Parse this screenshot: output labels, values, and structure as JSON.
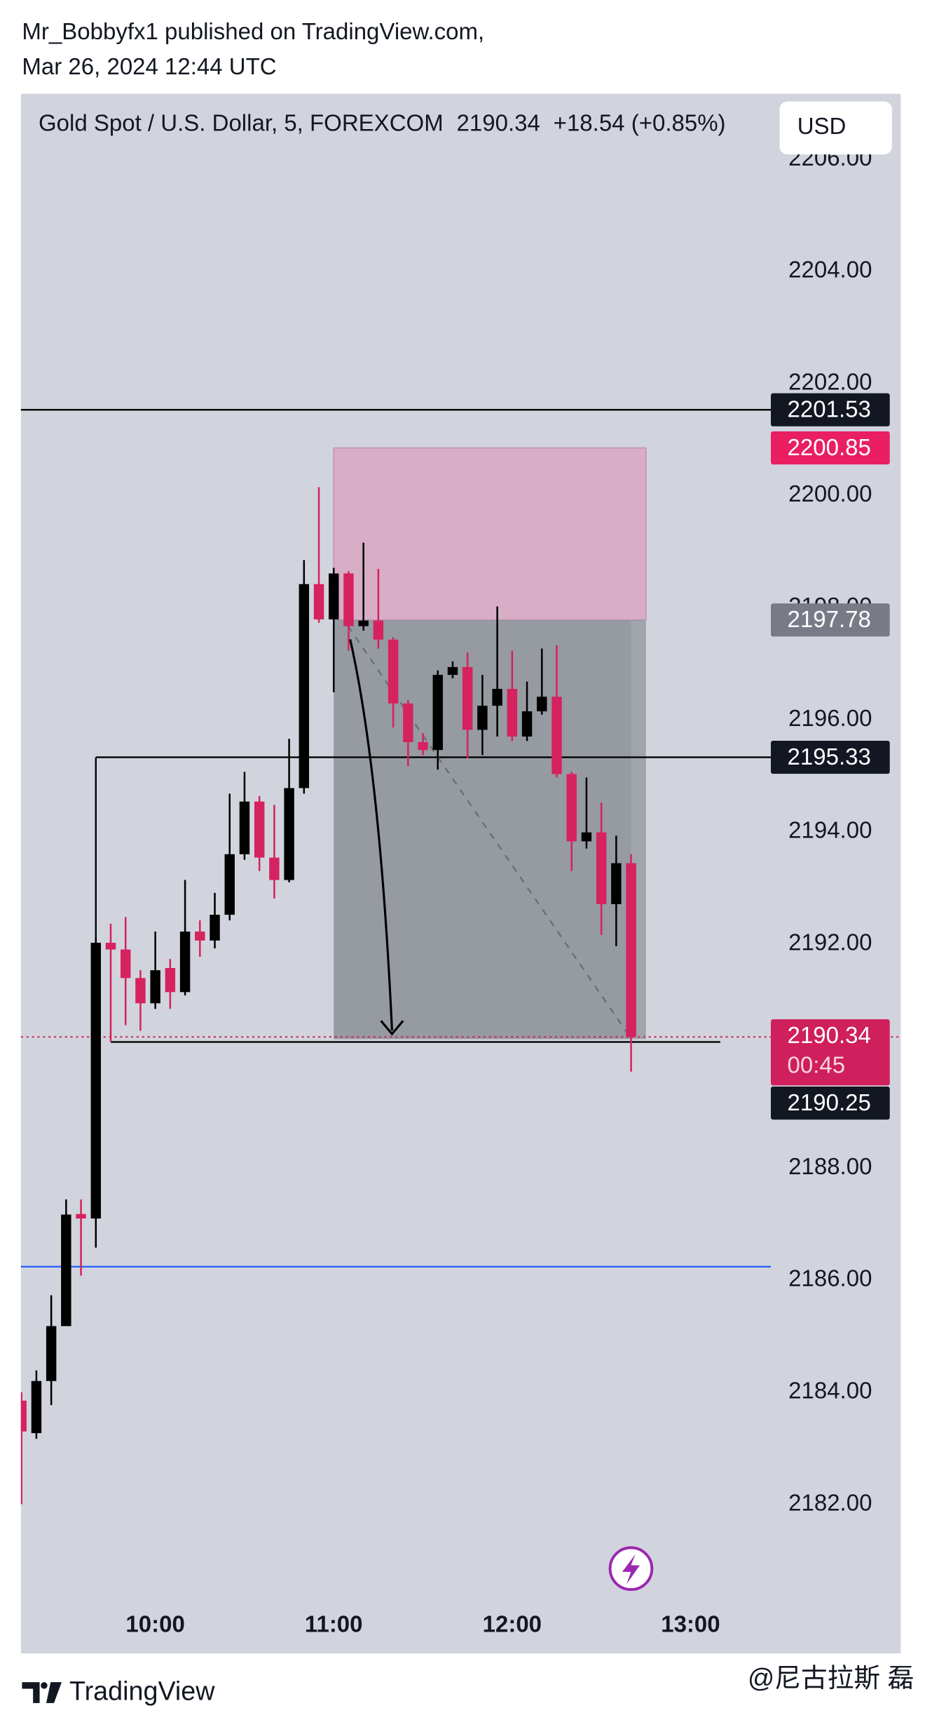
{
  "header": {
    "publisher": "Mr_Bobbyfx1 published on TradingView.com,",
    "date": "Mar 26, 2024 12:44 UTC"
  },
  "chart_data": {
    "type": "candlestick",
    "title": "Gold Spot / U.S. Dollar, 5, FOREXCOM",
    "change": "+18.54 (+0.85%)",
    "currency": "USD",
    "countdown": "00:45",
    "up_color": "#000000",
    "down_color": "#d6225e",
    "grid": false,
    "x": [
      555,
      560,
      565,
      570,
      575,
      580,
      585,
      590,
      595,
      600,
      605,
      610,
      615,
      620,
      625,
      630,
      635,
      640,
      645,
      650,
      655,
      660,
      665,
      670,
      675,
      680,
      685,
      690,
      695,
      700,
      705,
      710,
      715,
      720,
      725,
      730,
      735,
      740,
      745,
      750,
      755,
      760
    ],
    "open": [
      2183.85,
      2183.27,
      2184.2,
      2185.18,
      2187.18,
      2187.1,
      2192.02,
      2191.9,
      2191.39,
      2190.94,
      2191.57,
      2191.14,
      2192.22,
      2192.06,
      2192.52,
      2193.6,
      2194.54,
      2193.54,
      2193.14,
      2194.78,
      2198.42,
      2197.79,
      2198.61,
      2197.67,
      2197.77,
      2197.43,
      2196.29,
      2195.6,
      2195.46,
      2196.8,
      2196.94,
      2195.82,
      2196.25,
      2196.55,
      2195.7,
      2196.15,
      2196.41,
      2195.03,
      2193.83,
      2193.99,
      2192.71,
      2193.44
    ],
    "high": [
      2184.0,
      2184.39,
      2185.73,
      2187.44,
      2187.44,
      2192.12,
      2192.36,
      2192.48,
      2191.53,
      2192.22,
      2191.73,
      2193.14,
      2192.42,
      2192.91,
      2194.68,
      2195.07,
      2194.64,
      2194.48,
      2195.66,
      2198.85,
      2200.15,
      2198.71,
      2198.65,
      2199.16,
      2198.69,
      2197.47,
      2196.35,
      2195.76,
      2196.88,
      2197.04,
      2197.2,
      2196.8,
      2198.02,
      2197.23,
      2196.68,
      2197.27,
      2197.33,
      2195.07,
      2194.97,
      2194.52,
      2193.93,
      2193.6
    ],
    "low": [
      2182.0,
      2183.17,
      2183.77,
      2185.2,
      2186.08,
      2186.58,
      2190.25,
      2190.55,
      2190.45,
      2190.84,
      2190.84,
      2191.08,
      2191.77,
      2191.92,
      2192.42,
      2193.5,
      2193.3,
      2192.81,
      2193.1,
      2194.68,
      2197.73,
      2196.49,
      2197.23,
      2197.59,
      2197.27,
      2195.86,
      2195.17,
      2195.37,
      2195.11,
      2196.74,
      2195.31,
      2195.37,
      2195.7,
      2195.62,
      2195.62,
      2196.09,
      2194.97,
      2193.3,
      2193.7,
      2192.16,
      2191.96,
      2189.72
    ],
    "close": [
      2183.3,
      2184.2,
      2185.18,
      2187.17,
      2187.1,
      2192.02,
      2191.9,
      2191.39,
      2190.94,
      2191.53,
      2191.14,
      2192.22,
      2192.06,
      2192.52,
      2193.6,
      2194.54,
      2193.54,
      2193.14,
      2194.78,
      2198.42,
      2197.79,
      2198.61,
      2197.67,
      2197.77,
      2197.43,
      2196.29,
      2195.6,
      2195.46,
      2196.8,
      2196.94,
      2195.82,
      2196.25,
      2196.55,
      2195.7,
      2196.15,
      2196.41,
      2195.03,
      2193.83,
      2193.99,
      2192.71,
      2193.44,
      2190.34
    ],
    "xlim": [
      554.8,
      807
    ],
    "xticks": [
      {
        "value": 600,
        "label": "10:00"
      },
      {
        "value": 660,
        "label": "11:00"
      },
      {
        "value": 720,
        "label": "12:00"
      },
      {
        "value": 780,
        "label": "13:00"
      }
    ],
    "ylim": [
      2180.42,
      2207.17
    ],
    "yticks": [
      {
        "value": 2182,
        "label": "2182.00"
      },
      {
        "value": 2184,
        "label": "2184.00"
      },
      {
        "value": 2186,
        "label": "2186.00"
      },
      {
        "value": 2188,
        "label": "2188.00"
      },
      {
        "value": 2190,
        "label": "2190.00"
      },
      {
        "value": 2192,
        "label": "2192.00"
      },
      {
        "value": 2194,
        "label": "2194.00"
      },
      {
        "value": 2196,
        "label": "2196.00"
      },
      {
        "value": 2198,
        "label": "2198.00"
      },
      {
        "value": 2200,
        "label": "2200.00"
      },
      {
        "value": 2202,
        "label": "2202.00"
      },
      {
        "value": 2204,
        "label": "2204.00"
      },
      {
        "value": 2206,
        "label": "2206.00"
      }
    ],
    "levels": [
      {
        "value": 2201.53,
        "color": "#000000",
        "badge": true
      },
      {
        "value": 2195.33,
        "color": "#000000",
        "badge": true,
        "x_start": 580,
        "from_value": 2192.02
      },
      {
        "value": 2190.25,
        "color": "#000000",
        "badge": true,
        "x_start": 585,
        "x_end": 790
      },
      {
        "value": 2186.24,
        "color": "#2962ff",
        "badge": false
      }
    ],
    "position": {
      "x_start": 660,
      "x_end": 765,
      "stop": 2200.85,
      "entry": 2197.78,
      "target": 2190.3,
      "stop_color": "#d7aec6",
      "target_color": "#8e9199",
      "stop_badge_color": "#e91e63",
      "entry_badge_color": "#787b86"
    },
    "last_color": "#cf1f5c"
  },
  "footer": {
    "brand": "TradingView",
    "watermark": "@尼古拉斯 磊"
  }
}
